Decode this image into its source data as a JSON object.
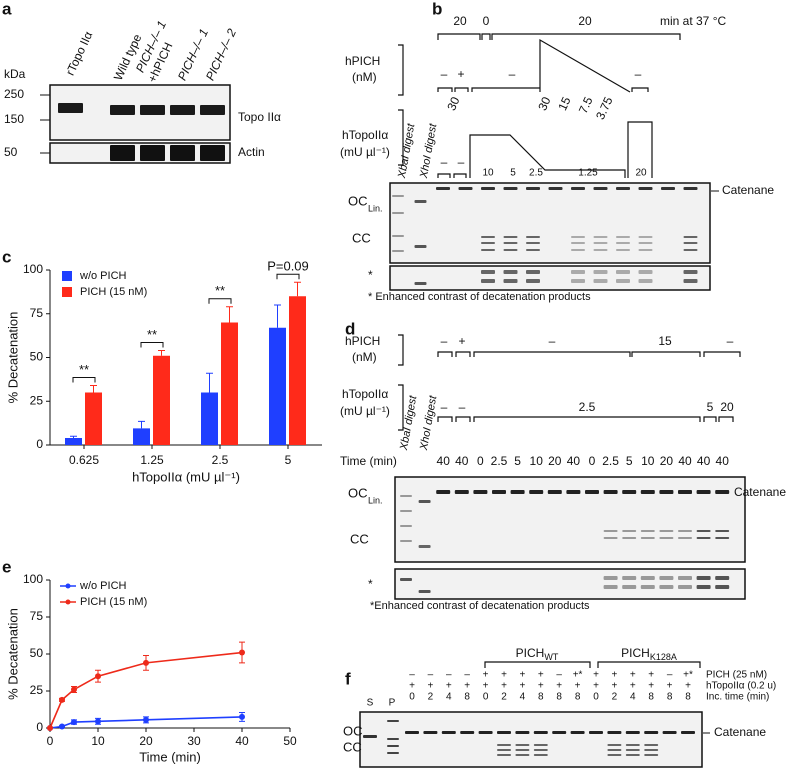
{
  "panel_a": {
    "label": "a",
    "unit": "kDa",
    "markers": [
      250,
      150,
      50
    ],
    "lanes": [
      "rTopo IIα",
      "Wild type",
      "PICH–/– 1",
      "+hPICH",
      "PICH–/– 1",
      "PICH–/– 2"
    ],
    "rows": [
      "Topo IIα",
      "Actin"
    ]
  },
  "panel_b": {
    "label": "b",
    "time_row": [
      20,
      0,
      20,
      "min at 37 °C"
    ],
    "hpich_label": [
      "hPICH",
      "(nM)"
    ],
    "hpich_signs": [
      "–",
      "+",
      "–",
      "–"
    ],
    "hpich_values": [
      30,
      30,
      15,
      7.5,
      3.75
    ],
    "topo_label": [
      "hTopoIIα",
      "(mU µl⁻¹)"
    ],
    "digests": [
      "XbaI digest",
      "XhoI digest"
    ],
    "topo_signs": [
      "–",
      "–"
    ],
    "topo_values": [
      10,
      5,
      2.5,
      1.25,
      20
    ],
    "gel_labels": [
      "OC",
      "Lin.",
      "CC",
      "Catenane",
      "*"
    ],
    "footnote": "* Enhanced contrast of decatenation products"
  },
  "panel_d": {
    "label": "d",
    "hpich_label": [
      "hPICH",
      "(nM)"
    ],
    "hpich_signs": [
      "–",
      "+",
      "–",
      "–"
    ],
    "hpich_values": [
      15
    ],
    "topo_label": [
      "hTopoIIα",
      "(mU µl⁻¹)"
    ],
    "digests": [
      "XbaI digest",
      "XhoI digest"
    ],
    "topo_signs": [
      "–",
      "–"
    ],
    "topo_values": [
      2.5,
      5,
      20
    ],
    "time_label": "Time (min)",
    "times": [
      40,
      40,
      0,
      2.5,
      5,
      10,
      20,
      40,
      0,
      2.5,
      5,
      10,
      20,
      40,
      40,
      40
    ],
    "gel_labels": [
      "OC",
      "Lin.",
      "CC",
      "Catenane",
      "*"
    ],
    "footnote": "*Enhanced contrast of decatenation products"
  },
  "panel_f": {
    "label": "f",
    "lanes_sp": [
      "S",
      "P"
    ],
    "groups": [
      {
        "name": "PICH",
        "sub": "WT"
      },
      {
        "name": "PICH",
        "sub": "K128A"
      }
    ],
    "rows": [
      {
        "label": "PICH (25 nM)",
        "cells": [
          "–",
          "–",
          "–",
          "–",
          "+",
          "+",
          "+",
          "+",
          "–",
          "+*",
          "+",
          "+",
          "+",
          "+",
          "–",
          "+*"
        ]
      },
      {
        "label": "hTopoIIα (0.2 u)",
        "cells": [
          "+",
          "+",
          "+",
          "+",
          "+",
          "+",
          "+",
          "+",
          "+",
          "+",
          "+",
          "+",
          "+",
          "+",
          "+",
          "+"
        ]
      },
      {
        "label": "Inc. time (min)",
        "cells": [
          0,
          2,
          4,
          8,
          0,
          2,
          4,
          8,
          8,
          8,
          0,
          2,
          4,
          8,
          8,
          8
        ]
      }
    ],
    "gel_labels": [
      "OC",
      "CC",
      "Catenane"
    ]
  },
  "chart_data": [
    {
      "type": "bar",
      "label": "c",
      "categories": [
        "0.625",
        "1.25",
        "2.5",
        "5"
      ],
      "series": [
        {
          "name": "w/o PICH",
          "color": "#1f3fff",
          "values": [
            4,
            9.5,
            30,
            67
          ],
          "errors": [
            1,
            4,
            11,
            13
          ]
        },
        {
          "name": "PICH (15 nM)",
          "color": "#ff2a1a",
          "values": [
            30,
            51,
            70,
            85
          ],
          "errors": [
            4,
            3,
            9,
            8
          ]
        }
      ],
      "ylim": [
        0,
        100
      ],
      "yticks": [
        0,
        25,
        50,
        75,
        100
      ],
      "x_label": "hTopoIIα (mU µl⁻¹)",
      "y_label": "% Decatenation",
      "annotations": [
        "**",
        "**",
        "**",
        "P=0.09"
      ],
      "legend": "top-left"
    },
    {
      "type": "line",
      "label": "e",
      "x": [
        0,
        2.5,
        5,
        10,
        20,
        40
      ],
      "series": [
        {
          "name": "w/o PICH",
          "color": "#1f3fff",
          "values": [
            0,
            1,
            4,
            4.5,
            5.5,
            7.5
          ],
          "errors": [
            0,
            0.5,
            1.5,
            2,
            2,
            3
          ]
        },
        {
          "name": "PICH (15 nM)",
          "color": "#ee2a1a",
          "values": [
            0,
            19,
            26,
            35,
            44,
            51
          ],
          "errors": [
            0,
            1,
            2,
            4,
            5,
            7
          ]
        }
      ],
      "xlim": [
        0,
        50
      ],
      "xticks": [
        0,
        10,
        20,
        30,
        40,
        50
      ],
      "ylim": [
        0,
        100
      ],
      "yticks": [
        0,
        25,
        50,
        75,
        100
      ],
      "x_label": "Time (min)",
      "y_label": "% Decatenation",
      "legend": "top-left"
    }
  ]
}
